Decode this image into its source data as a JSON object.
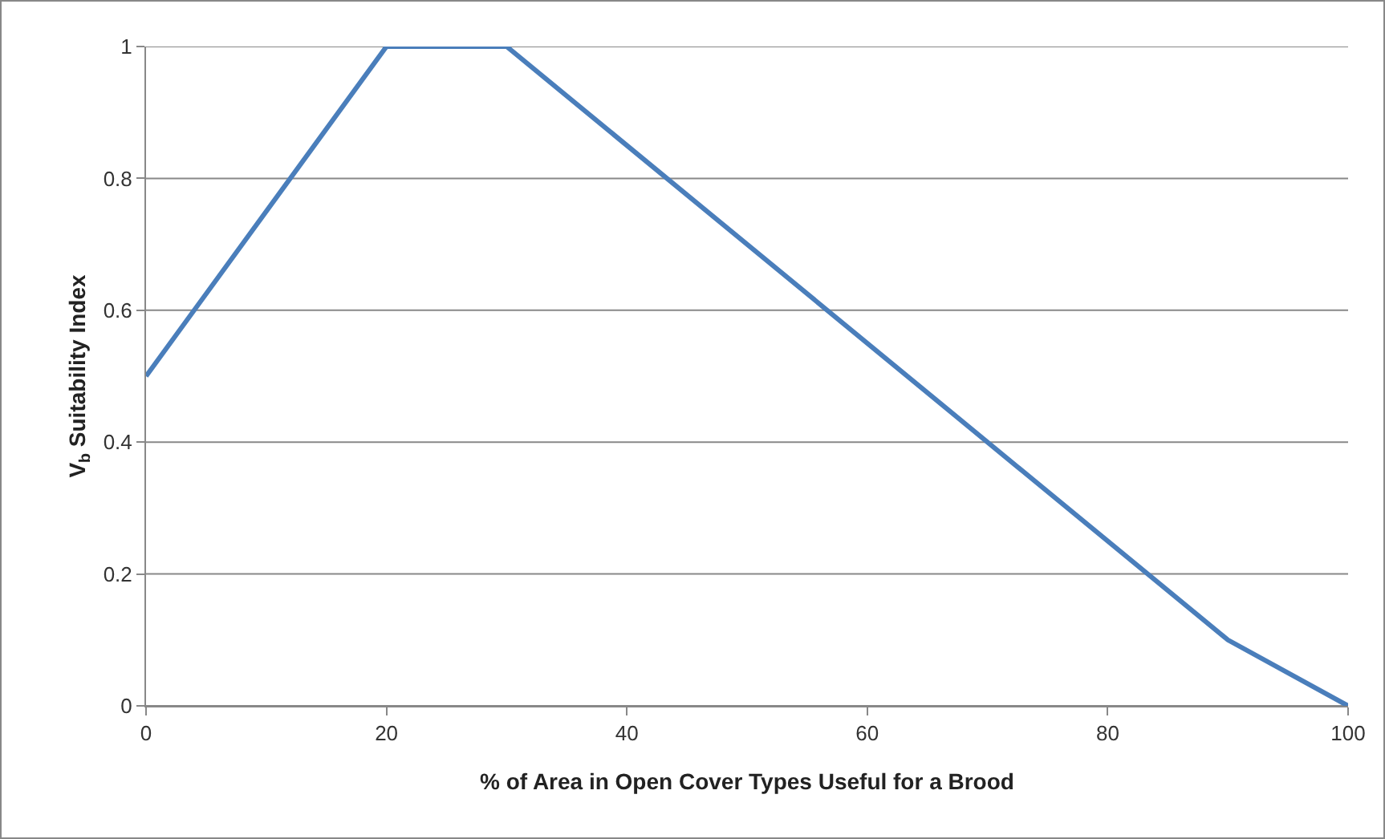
{
  "chart_data": {
    "type": "line",
    "xlabel": "% of Area in Open Cover Types Useful for a Brood",
    "ylabel": "V$_{b}$ Suitability Index",
    "x": [
      0,
      20,
      30,
      90,
      100
    ],
    "series": [
      {
        "color": "#4a7ebb",
        "values": [
          0.5,
          1,
          1,
          0.1,
          0
        ]
      }
    ],
    "xlim": [
      0,
      100
    ],
    "xticks": [
      0,
      20,
      40,
      60,
      80,
      100
    ],
    "ylim": [
      0,
      1
    ],
    "yticks": [
      0,
      0.2,
      0.4,
      0.6,
      0.8,
      1
    ],
    "grid": "y",
    "marker": "none",
    "line_style": "solid"
  }
}
